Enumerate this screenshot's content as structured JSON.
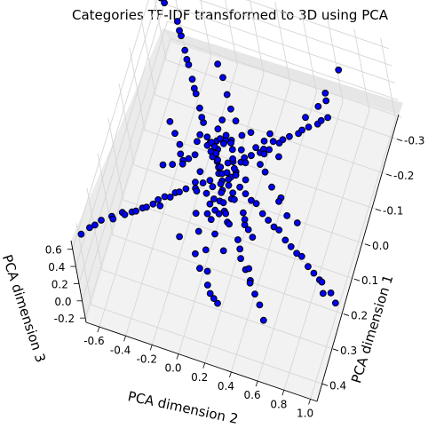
{
  "chart_data": {
    "type": "scatter",
    "title": "Categories TF-IDF transformed to 3D using PCA",
    "axes": {
      "x": {
        "label": "PCA dimension 1",
        "ticks": [
          "-0.3",
          "-0.2",
          "-0.1",
          "0.0",
          "0.1",
          "0.2",
          "0.3",
          "0.4"
        ],
        "range": [
          -0.35,
          0.45
        ]
      },
      "y": {
        "label": "PCA dimension 2",
        "ticks": [
          "-0.6",
          "-0.4",
          "-0.2",
          "0.0",
          "0.2",
          "0.4",
          "0.6",
          "0.8",
          "1.0"
        ],
        "range": [
          -0.7,
          1.05
        ]
      },
      "z": {
        "label": "PCA dimension 3",
        "ticks": [
          "-0.2",
          "0.0",
          "0.2",
          "0.4",
          "0.6"
        ],
        "range": [
          -0.25,
          0.7
        ]
      }
    },
    "grid": true,
    "legend": "none",
    "series": [
      {
        "marker_color": "#0000ff",
        "edge_color": "#000000",
        "points": [
          [
            -0.02,
            -0.05,
            0.05
          ],
          [
            0.0,
            -0.02,
            0.08
          ],
          [
            0.02,
            0.0,
            0.1
          ],
          [
            0.03,
            0.03,
            0.07
          ],
          [
            -0.03,
            0.02,
            0.03
          ],
          [
            0.05,
            -0.04,
            0.12
          ],
          [
            0.07,
            0.0,
            0.15
          ],
          [
            0.06,
            0.06,
            0.1
          ],
          [
            0.01,
            0.08,
            0.06
          ],
          [
            -0.04,
            0.05,
            0.02
          ],
          [
            0.1,
            -0.1,
            0.2
          ],
          [
            0.12,
            -0.15,
            0.25
          ],
          [
            0.15,
            -0.2,
            0.3
          ],
          [
            0.18,
            -0.25,
            0.35
          ],
          [
            0.22,
            -0.3,
            0.4
          ],
          [
            0.25,
            -0.35,
            0.45
          ],
          [
            0.28,
            -0.4,
            0.5
          ],
          [
            0.3,
            -0.45,
            0.55
          ],
          [
            0.33,
            -0.5,
            0.6
          ],
          [
            0.36,
            -0.55,
            0.65
          ],
          [
            0.08,
            -0.12,
            0.18
          ],
          [
            0.14,
            -0.18,
            0.28
          ],
          [
            0.2,
            -0.28,
            0.38
          ],
          [
            0.24,
            -0.33,
            0.43
          ],
          [
            0.27,
            -0.38,
            0.48
          ],
          [
            0.11,
            -0.08,
            0.22
          ],
          [
            0.17,
            -0.22,
            0.32
          ],
          [
            0.21,
            -0.26,
            0.36
          ],
          [
            0.31,
            -0.42,
            0.58
          ],
          [
            0.34,
            -0.48,
            0.62
          ],
          [
            -0.05,
            0.1,
            0.0
          ],
          [
            -0.08,
            0.15,
            -0.02
          ],
          [
            -0.1,
            0.2,
            -0.04
          ],
          [
            -0.12,
            0.25,
            -0.06
          ],
          [
            -0.15,
            0.3,
            -0.08
          ],
          [
            -0.18,
            0.35,
            -0.1
          ],
          [
            -0.2,
            0.4,
            -0.12
          ],
          [
            -0.23,
            0.45,
            -0.14
          ],
          [
            -0.25,
            0.5,
            -0.16
          ],
          [
            -0.28,
            0.55,
            -0.18
          ],
          [
            -0.06,
            0.12,
            0.02
          ],
          [
            -0.11,
            0.22,
            -0.03
          ],
          [
            -0.16,
            0.32,
            -0.07
          ],
          [
            -0.21,
            0.42,
            -0.11
          ],
          [
            -0.26,
            0.52,
            -0.15
          ],
          [
            0.02,
            0.15,
            0.02
          ],
          [
            0.04,
            0.25,
            0.0
          ],
          [
            0.06,
            0.35,
            -0.02
          ],
          [
            0.08,
            0.45,
            -0.04
          ],
          [
            0.1,
            0.55,
            -0.06
          ],
          [
            0.12,
            0.65,
            -0.08
          ],
          [
            0.14,
            0.75,
            -0.1
          ],
          [
            0.16,
            0.85,
            -0.12
          ],
          [
            0.18,
            0.95,
            -0.14
          ],
          [
            0.2,
            1.0,
            -0.15
          ],
          [
            0.03,
            0.2,
            0.01
          ],
          [
            0.07,
            0.4,
            -0.03
          ],
          [
            0.11,
            0.6,
            -0.07
          ],
          [
            0.15,
            0.8,
            -0.11
          ],
          [
            0.19,
            0.9,
            -0.13
          ],
          [
            0.05,
            0.3,
            0.03
          ],
          [
            0.09,
            0.5,
            -0.01
          ],
          [
            0.13,
            0.7,
            -0.05
          ],
          [
            0.17,
            0.88,
            -0.09
          ],
          [
            0.0,
            0.18,
            0.04
          ],
          [
            -0.03,
            -0.1,
            0.1
          ],
          [
            -0.06,
            -0.15,
            0.12
          ],
          [
            -0.09,
            -0.2,
            0.14
          ],
          [
            -0.12,
            -0.25,
            0.16
          ],
          [
            -0.15,
            -0.3,
            0.18
          ],
          [
            -0.18,
            -0.35,
            0.2
          ],
          [
            -0.21,
            -0.4,
            0.22
          ],
          [
            -0.24,
            -0.45,
            0.24
          ],
          [
            -0.27,
            -0.5,
            0.26
          ],
          [
            -0.3,
            -0.55,
            0.28
          ],
          [
            -0.05,
            -0.12,
            0.11
          ],
          [
            -0.1,
            -0.22,
            0.15
          ],
          [
            -0.16,
            -0.32,
            0.19
          ],
          [
            -0.22,
            -0.42,
            0.23
          ],
          [
            -0.28,
            -0.52,
            0.27
          ],
          [
            0.0,
            0.0,
            0.3
          ],
          [
            0.02,
            -0.05,
            0.4
          ],
          [
            0.04,
            -0.1,
            0.5
          ],
          [
            -0.02,
            0.05,
            0.35
          ],
          [
            0.01,
            0.02,
            0.45
          ],
          [
            -0.04,
            -0.02,
            0.25
          ],
          [
            0.03,
            -0.08,
            0.55
          ],
          [
            0.05,
            0.03,
            0.6
          ],
          [
            0.0,
            -0.03,
            0.2
          ],
          [
            0.02,
            0.06,
            0.65
          ],
          [
            0.08,
            0.05,
            0.05
          ],
          [
            0.1,
            0.1,
            0.04
          ],
          [
            0.12,
            0.08,
            0.08
          ],
          [
            0.06,
            0.12,
            0.03
          ],
          [
            0.09,
            0.02,
            0.1
          ],
          [
            -0.07,
            -0.04,
            0.06
          ],
          [
            -0.09,
            0.0,
            0.04
          ],
          [
            -0.02,
            -0.08,
            0.09
          ],
          [
            0.04,
            -0.12,
            0.14
          ],
          [
            -0.01,
            0.1,
            0.05
          ],
          [
            0.15,
            0.05,
            0.12
          ],
          [
            0.18,
            0.1,
            0.1
          ],
          [
            0.13,
            0.15,
            0.06
          ],
          [
            0.2,
            0.0,
            0.16
          ],
          [
            0.16,
            -0.05,
            0.18
          ],
          [
            -0.12,
            0.05,
            0.0
          ],
          [
            -0.14,
            0.1,
            -0.02
          ],
          [
            -0.1,
            -0.05,
            0.03
          ],
          [
            -0.08,
            0.08,
            0.01
          ],
          [
            -0.13,
            -0.1,
            0.06
          ],
          [
            0.25,
            0.1,
            0.2
          ],
          [
            0.28,
            0.05,
            0.25
          ],
          [
            0.3,
            0.15,
            0.18
          ],
          [
            0.22,
            0.2,
            0.12
          ],
          [
            0.26,
            -0.08,
            0.3
          ],
          [
            0.35,
            0.2,
            0.25
          ],
          [
            0.38,
            0.25,
            0.3
          ],
          [
            0.4,
            0.3,
            0.35
          ],
          [
            0.42,
            0.35,
            0.4
          ],
          [
            0.32,
            0.12,
            0.28
          ],
          [
            -0.2,
            0.6,
            0.3
          ],
          [
            -0.22,
            0.65,
            0.4
          ],
          [
            -0.18,
            0.7,
            0.5
          ],
          [
            -0.25,
            0.75,
            0.6
          ],
          [
            -0.15,
            0.55,
            0.35
          ],
          [
            0.4,
            -0.6,
            0.7
          ],
          [
            0.42,
            -0.65,
            0.68
          ],
          [
            0.38,
            -0.58,
            0.66
          ],
          [
            -0.3,
            -0.65,
            0.5
          ],
          [
            -0.28,
            -0.6,
            0.55
          ],
          [
            0.05,
            0.45,
            0.3
          ],
          [
            0.08,
            0.55,
            0.35
          ],
          [
            0.1,
            0.6,
            0.25
          ],
          [
            0.06,
            0.5,
            0.2
          ],
          [
            0.12,
            0.7,
            0.3
          ],
          [
            -0.05,
            0.3,
            0.2
          ],
          [
            -0.08,
            0.35,
            0.25
          ],
          [
            -0.03,
            0.28,
            0.15
          ],
          [
            0.0,
            0.35,
            0.22
          ],
          [
            -0.06,
            0.4,
            0.18
          ],
          [
            0.2,
            0.3,
            0.0
          ],
          [
            0.22,
            0.35,
            -0.02
          ],
          [
            0.18,
            0.28,
            0.02
          ],
          [
            0.24,
            0.4,
            -0.04
          ],
          [
            0.16,
            0.25,
            0.03
          ],
          [
            -0.15,
            -0.05,
            0.3
          ],
          [
            -0.18,
            -0.1,
            0.35
          ],
          [
            -0.12,
            0.0,
            0.28
          ],
          [
            -0.2,
            -0.15,
            0.4
          ],
          [
            -0.1,
            0.05,
            0.25
          ],
          [
            0.3,
            0.5,
            0.1
          ],
          [
            0.35,
            0.6,
            0.05
          ],
          [
            0.28,
            0.45,
            0.12
          ],
          [
            0.32,
            0.55,
            0.08
          ],
          [
            0.25,
            0.42,
            0.15
          ],
          [
            0.07,
            -0.2,
            0.35
          ],
          [
            0.1,
            -0.25,
            0.4
          ],
          [
            0.05,
            -0.18,
            0.3
          ],
          [
            0.12,
            -0.3,
            0.45
          ],
          [
            0.03,
            -0.15,
            0.28
          ],
          [
            -0.08,
            0.2,
            0.1
          ],
          [
            -0.1,
            0.25,
            0.12
          ],
          [
            -0.06,
            0.18,
            0.08
          ],
          [
            -0.12,
            0.28,
            0.14
          ],
          [
            -0.04,
            0.15,
            0.06
          ],
          [
            0.14,
            0.3,
            0.15
          ],
          [
            0.16,
            0.35,
            0.2
          ],
          [
            0.12,
            0.28,
            0.12
          ],
          [
            0.18,
            0.4,
            0.22
          ],
          [
            0.1,
            0.25,
            0.1
          ],
          [
            0.0,
            -0.3,
            0.2
          ],
          [
            -0.02,
            -0.35,
            0.22
          ],
          [
            0.02,
            -0.28,
            0.18
          ],
          [
            -0.04,
            -0.4,
            0.25
          ],
          [
            0.04,
            -0.25,
            0.16
          ],
          [
            0.06,
            0.05,
            -0.05
          ],
          [
            0.08,
            0.08,
            -0.08
          ],
          [
            0.04,
            0.02,
            -0.03
          ],
          [
            0.1,
            0.12,
            -0.1
          ],
          [
            0.02,
            0.0,
            -0.02
          ],
          [
            -0.02,
            0.08,
            0.15
          ],
          [
            0.01,
            0.12,
            0.18
          ],
          [
            -0.05,
            0.05,
            0.12
          ],
          [
            0.03,
            0.15,
            0.2
          ],
          [
            -0.07,
            0.02,
            0.1
          ],
          [
            0.09,
            -0.02,
            0.02
          ],
          [
            0.11,
            0.04,
            0.06
          ],
          [
            0.07,
            -0.06,
            0.04
          ],
          [
            0.13,
            0.0,
            0.08
          ],
          [
            0.05,
            -0.1,
            0.06
          ],
          [
            -0.01,
            -0.03,
            0.12
          ],
          [
            0.01,
            0.01,
            0.14
          ],
          [
            -0.03,
            -0.06,
            0.1
          ],
          [
            0.03,
            0.04,
            0.16
          ],
          [
            -0.05,
            -0.09,
            0.08
          ],
          [
            0.04,
            0.09,
            0.09
          ],
          [
            0.06,
            0.14,
            0.11
          ],
          [
            0.02,
            0.07,
            0.07
          ],
          [
            0.08,
            0.17,
            0.13
          ],
          [
            0.0,
            0.04,
            0.05
          ]
        ]
      }
    ]
  }
}
